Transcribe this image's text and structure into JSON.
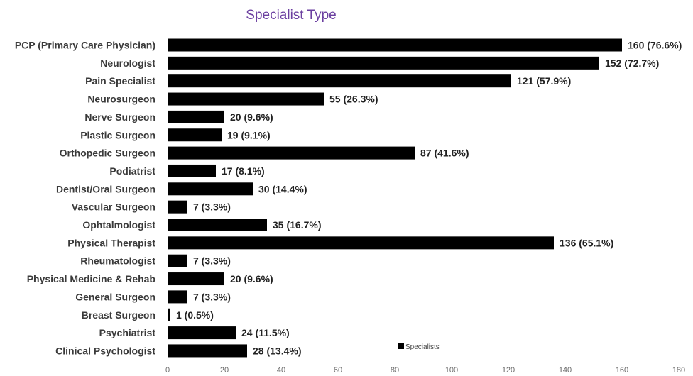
{
  "chart_data": {
    "type": "bar",
    "orientation": "horizontal",
    "title": "Specialist Type",
    "categories": [
      "PCP (Primary Care Physician)",
      "Neurologist",
      "Pain Specialist",
      "Neurosurgeon",
      "Nerve Surgeon",
      "Plastic Surgeon",
      "Orthopedic Surgeon",
      "Podiatrist",
      "Dentist/Oral Surgeon",
      "Vascular Surgeon",
      "Ophtalmologist",
      "Physical Therapist",
      "Rheumatologist",
      "Physical Medicine & Rehab",
      "General Surgeon",
      "Breast Surgeon",
      "Psychiatrist",
      "Clinical Psychologist"
    ],
    "series": [
      {
        "name": "Specialists",
        "color": "#000000",
        "values": [
          160,
          152,
          121,
          55,
          20,
          19,
          87,
          17,
          30,
          7,
          35,
          136,
          7,
          20,
          7,
          1,
          24,
          28
        ]
      }
    ],
    "data_labels": [
      "160 (76.6%)",
      "152 (72.7%)",
      "121 (57.9%)",
      "55 (26.3%)",
      "20 (9.6%)",
      "19 (9.1%)",
      "87 (41.6%)",
      "17 (8.1%)",
      "30 (14.4%)",
      "7 (3.3%)",
      "35 (16.7%)",
      "136 (65.1%)",
      "7 (3.3%)",
      "20 (9.6%)",
      "7 (3.3%)",
      "1 (0.5%)",
      "24 (11.5%)",
      "28 (13.4%)"
    ],
    "x_ticks": [
      0,
      20,
      40,
      60,
      80,
      100,
      120,
      140,
      160,
      180
    ],
    "xlim": [
      0,
      180
    ],
    "grid": false,
    "legend": {
      "position": "bottom-center",
      "entries": [
        "Specialists"
      ]
    },
    "colors": {
      "bar": "#000000",
      "title": "#6b3fa0",
      "category_text": "#3a3a3a",
      "tick_text": "#6b6b6b"
    }
  }
}
